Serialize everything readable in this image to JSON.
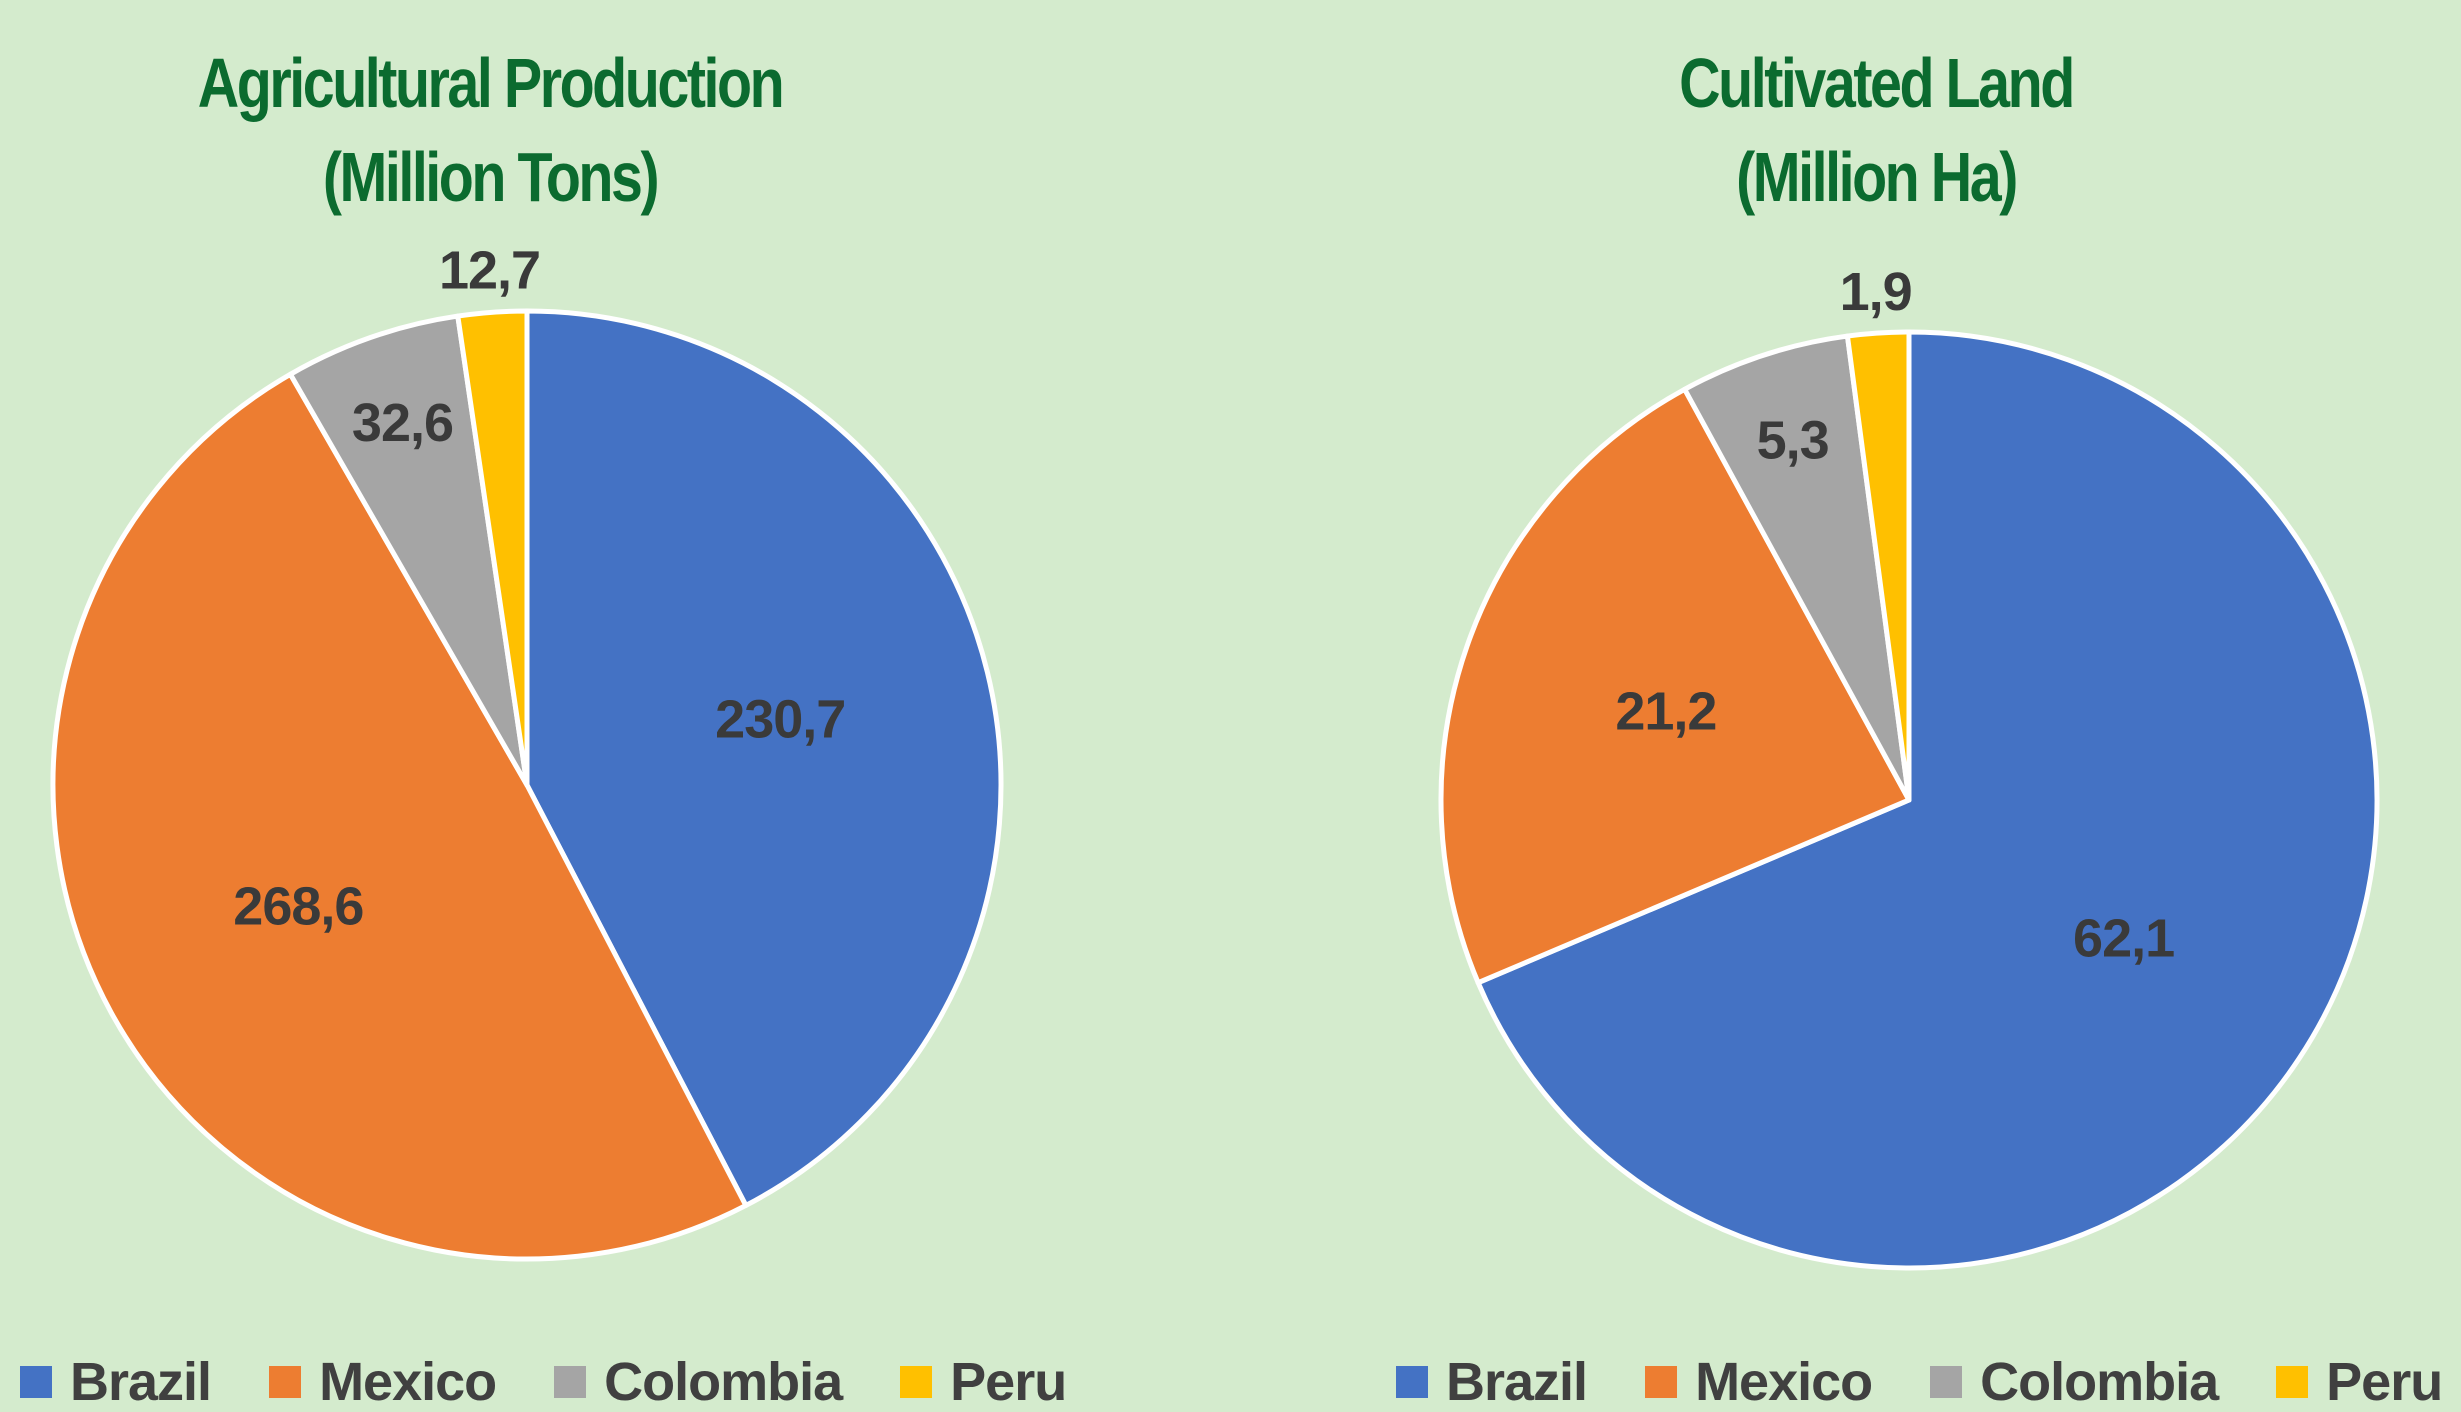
{
  "chart_data": [
    {
      "type": "pie",
      "title": "Agricultural Production\n(Million Tons)",
      "categories": [
        "Brazil",
        "Mexico",
        "Colombia",
        "Peru"
      ],
      "values": [
        230.7,
        268.6,
        32.6,
        12.7
      ],
      "value_labels": [
        "230,7",
        "268,6",
        "32,6",
        "12,7"
      ],
      "colors": [
        "#4472c4",
        "#ed7d31",
        "#a5a5a5",
        "#ffc000"
      ],
      "legend": "bottom"
    },
    {
      "type": "pie",
      "title": "Cultivated Land\n(Million Ha)",
      "categories": [
        "Brazil",
        "Mexico",
        "Colombia",
        "Peru"
      ],
      "values": [
        62.1,
        21.2,
        5.3,
        1.9
      ],
      "value_labels": [
        "62,1",
        "21,2",
        "5,3",
        "1,9"
      ],
      "colors": [
        "#4472c4",
        "#ed7d31",
        "#a5a5a5",
        "#ffc000"
      ],
      "legend": "bottom"
    }
  ]
}
